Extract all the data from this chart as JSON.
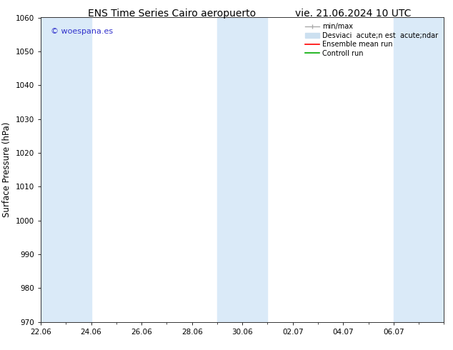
{
  "title_left": "ENS Time Series Cairo aeropuerto",
  "title_right": "vie. 21.06.2024 10 UTC",
  "ylabel": "Surface Pressure (hPa)",
  "ylim": [
    970,
    1060
  ],
  "yticks": [
    970,
    980,
    990,
    1000,
    1010,
    1020,
    1030,
    1040,
    1050,
    1060
  ],
  "xtick_labels": [
    "22.06",
    "24.06",
    "26.06",
    "28.06",
    "30.06",
    "02.07",
    "04.07",
    "06.07"
  ],
  "watermark": "© woespana.es",
  "watermark_color": "#3333cc",
  "background_color": "#ffffff",
  "shaded_color": "#daeaf8",
  "shaded_bands": [
    {
      "start": 0,
      "end": 1
    },
    {
      "start": 1,
      "end": 2
    },
    {
      "start": 7,
      "end": 8
    },
    {
      "start": 8,
      "end": 9
    },
    {
      "start": 14,
      "end": 15
    },
    {
      "start": 15,
      "end": 16
    }
  ],
  "legend_label_minmax": "min/max",
  "legend_label_std": "Desviaci  acute;n est  acute;ndar",
  "legend_label_ensemble": "Ensemble mean run",
  "legend_label_control": "Controll run",
  "legend_color_minmax": "#aaaaaa",
  "legend_color_std": "#cce0f0",
  "legend_color_ensemble": "#ff0000",
  "legend_color_control": "#00aa00",
  "title_fontsize": 10,
  "tick_fontsize": 7.5,
  "ylabel_fontsize": 8.5,
  "legend_fontsize": 7,
  "watermark_fontsize": 8
}
